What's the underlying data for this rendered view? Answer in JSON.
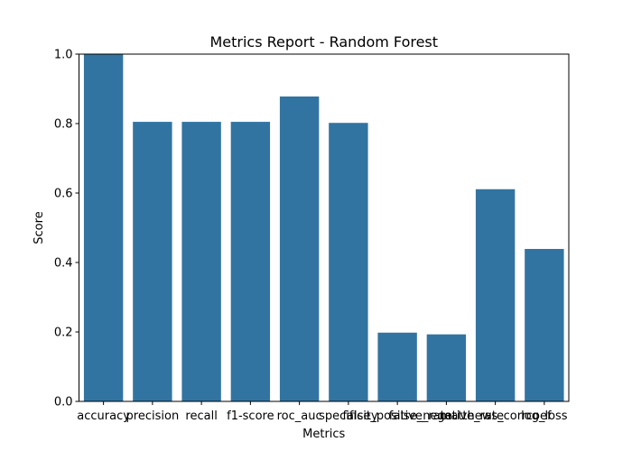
{
  "chart_data": {
    "type": "bar",
    "title": "Metrics Report - Random Forest",
    "xlabel": "Metrics",
    "ylabel": "Score",
    "categories": [
      "accuracy",
      "precision",
      "recall",
      "f1-score",
      "roc_auc",
      "specificity",
      "false_positive_rate",
      "false_negative_rate",
      "matthews_corrcoef",
      "log_loss"
    ],
    "values": [
      1.0,
      0.805,
      0.805,
      0.805,
      0.878,
      0.802,
      0.198,
      0.193,
      0.611,
      0.439
    ],
    "ylim": [
      0,
      1
    ],
    "yticks": [
      "0.0",
      "0.2",
      "0.4",
      "0.6",
      "0.8",
      "1.0"
    ],
    "grid": false,
    "color": "#3274a1"
  }
}
